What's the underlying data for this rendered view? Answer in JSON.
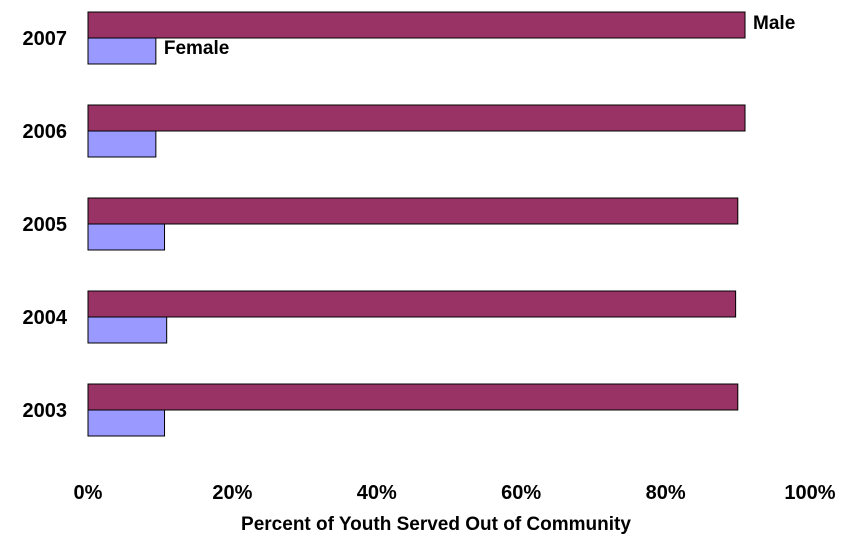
{
  "chart_data": {
    "type": "bar",
    "orientation": "horizontal",
    "categories": [
      "2007",
      "2006",
      "2005",
      "2004",
      "2003"
    ],
    "series": [
      {
        "name": "Male",
        "values": [
          91,
          91,
          90,
          89.7,
          90
        ],
        "color": "#993366"
      },
      {
        "name": "Female",
        "values": [
          9.4,
          9.4,
          10.6,
          10.9,
          10.6
        ],
        "color": "#9999ff"
      }
    ],
    "xlabel": "Percent of Youth Served Out of Community",
    "ylabel": "",
    "xlim": [
      0,
      100
    ],
    "x_ticks": [
      "0%",
      "20%",
      "40%",
      "60%",
      "80%",
      "100%"
    ],
    "grid": false,
    "legend": "direct labels on the first category bars"
  }
}
